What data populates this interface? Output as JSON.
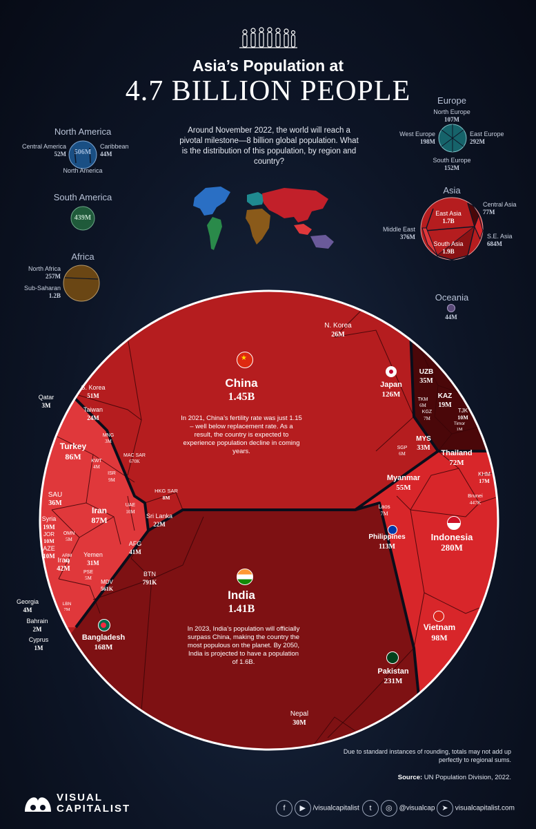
{
  "header": {
    "title_line1": "Asia’s Population at",
    "title_line2": "4.7 BILLION PEOPLE",
    "intro": "Around November 2022, the world will reach a pivotal milestone—8 billion global population. What is the distribution of this population, by region and country?"
  },
  "regions": {
    "north_america": {
      "name": "North America",
      "total": "506M",
      "parts": [
        {
          "name": "Central America",
          "value": "52M"
        },
        {
          "name": "Caribbean",
          "value": "44M"
        },
        {
          "name": "North America",
          "value": ""
        }
      ]
    },
    "south_america": {
      "name": "South America",
      "total": "439M"
    },
    "africa": {
      "name": "Africa",
      "parts": [
        {
          "name": "North Africa",
          "value": "257M"
        },
        {
          "name": "Sub-Saharan",
          "value": "1.2B"
        }
      ]
    },
    "europe": {
      "name": "Europe",
      "parts": [
        {
          "name": "North Europe",
          "value": "107M"
        },
        {
          "name": "West Europe",
          "value": "198M"
        },
        {
          "name": "East Europe",
          "value": "292M"
        },
        {
          "name": "South Europe",
          "value": "152M"
        }
      ]
    },
    "asia": {
      "name": "Asia",
      "parts": [
        {
          "name": "East Asia",
          "value": "1.7B"
        },
        {
          "name": "Central Asia",
          "value": "77M"
        },
        {
          "name": "Middle East",
          "value": "376M"
        },
        {
          "name": "S.E. Asia",
          "value": "684M"
        },
        {
          "name": "South Asia",
          "value": "1.9B"
        }
      ]
    },
    "oceania": {
      "name": "Oceania",
      "total": "44M"
    }
  },
  "chart_data": {
    "type": "voronoi-treemap",
    "title": "Asia’s Population at 4.7 BILLION PEOPLE",
    "countries": [
      {
        "name": "China",
        "value": "1.45B",
        "region": "East Asia"
      },
      {
        "name": "India",
        "value": "1.41B",
        "region": "South Asia"
      },
      {
        "name": "Indonesia",
        "value": "280M",
        "region": "S.E. Asia"
      },
      {
        "name": "Pakistan",
        "value": "231M",
        "region": "South Asia"
      },
      {
        "name": "Bangladesh",
        "value": "168M",
        "region": "South Asia"
      },
      {
        "name": "Japan",
        "value": "126M",
        "region": "East Asia"
      },
      {
        "name": "Philippines",
        "value": "113M",
        "region": "S.E. Asia"
      },
      {
        "name": "Vietnam",
        "value": "98M",
        "region": "S.E. Asia"
      },
      {
        "name": "Iran",
        "value": "87M",
        "region": "Middle East"
      },
      {
        "name": "Turkey",
        "value": "86M",
        "region": "Middle East"
      },
      {
        "name": "Thailand",
        "value": "72M",
        "region": "S.E. Asia"
      },
      {
        "name": "Myanmar",
        "value": "55M",
        "region": "S.E. Asia"
      },
      {
        "name": "S. Korea",
        "value": "51M",
        "region": "East Asia"
      },
      {
        "name": "Iraq",
        "value": "42M",
        "region": "Middle East"
      },
      {
        "name": "AFG",
        "value": "41M",
        "region": "South Asia"
      },
      {
        "name": "AZE",
        "value": "10M",
        "region": "Middle East"
      },
      {
        "name": "SAU",
        "value": "36M",
        "region": "Middle East"
      },
      {
        "name": "UZB",
        "value": "35M",
        "region": "Central Asia"
      },
      {
        "name": "MYS",
        "value": "33M",
        "region": "S.E. Asia"
      },
      {
        "name": "Yemen",
        "value": "31M",
        "region": "Middle East"
      },
      {
        "name": "Nepal",
        "value": "30M",
        "region": "South Asia"
      },
      {
        "name": "N. Korea",
        "value": "26M",
        "region": "East Asia"
      },
      {
        "name": "Taiwan",
        "value": "24M",
        "region": "East Asia"
      },
      {
        "name": "Sri Lanka",
        "value": "22M",
        "region": "South Asia"
      },
      {
        "name": "KAZ",
        "value": "19M",
        "region": "Central Asia"
      },
      {
        "name": "Syria",
        "value": "19M",
        "region": "Middle East"
      },
      {
        "name": "KHM",
        "value": "17M",
        "region": "S.E. Asia"
      },
      {
        "name": "JOR",
        "value": "10M",
        "region": "Middle East"
      },
      {
        "name": "TJK",
        "value": "10M",
        "region": "Central Asia"
      },
      {
        "name": "UAE",
        "value": "10M",
        "region": "Middle East"
      },
      {
        "name": "ISR",
        "value": "9M",
        "region": "Middle East"
      },
      {
        "name": "HKG SAR",
        "value": "8M",
        "region": "East Asia"
      },
      {
        "name": "Laos",
        "value": "7M",
        "region": "S.E. Asia"
      },
      {
        "name": "KGZ",
        "value": "7M",
        "region": "Central Asia"
      },
      {
        "name": "LBN",
        "value": "7M",
        "region": "Middle East"
      },
      {
        "name": "TKM",
        "value": "6M",
        "region": "Central Asia"
      },
      {
        "name": "SGP",
        "value": "6M",
        "region": "S.E. Asia"
      },
      {
        "name": "PSE",
        "value": "5M",
        "region": "Middle East"
      },
      {
        "name": "OMN",
        "value": "5M",
        "region": "Middle East"
      },
      {
        "name": "KWT",
        "value": "4M",
        "region": "Middle East"
      },
      {
        "name": "Georgia",
        "value": "4M",
        "region": "Middle East"
      },
      {
        "name": "MNG",
        "value": "3M",
        "region": "East Asia"
      },
      {
        "name": "Qatar",
        "value": "3M",
        "region": "Middle East"
      },
      {
        "name": "ARM",
        "value": "3M",
        "region": "Middle East"
      },
      {
        "name": "Bahrain",
        "value": "2M",
        "region": "Middle East"
      },
      {
        "name": "Timor",
        "value": "1M",
        "region": "S.E. Asia"
      },
      {
        "name": "Cyprus",
        "value": "1M",
        "region": "Middle East"
      },
      {
        "name": "BTN",
        "value": "791K",
        "region": "South Asia"
      },
      {
        "name": "MAC SAR",
        "value": "670K",
        "region": "East Asia"
      },
      {
        "name": "MDV",
        "value": "561K",
        "region": "South Asia"
      },
      {
        "name": "Brunei",
        "value": "447K",
        "region": "S.E. Asia"
      }
    ],
    "annotations": {
      "china": "In 2021, China’s fertility rate was just 1.15 – well below replacement rate. As a result, the country is expected to experience population decline in coming years.",
      "india": "In 2023, India’s population will officially surpass China, making the country the most populous on the planet. By 2050, India is projected to have a population of 1.6B."
    }
  },
  "footer": {
    "note": "Due to standard instances of rounding, totals may not add up perfectly to regional sums.",
    "source_label": "Source:",
    "source_text": "UN Population Division, 2022.",
    "brand_line1": "VISUAL",
    "brand_line2": "CAPITALIST",
    "social_a": "/visualcapitalist",
    "social_b": "@visualcap",
    "website": "visualcapitalist.com"
  },
  "colors": {
    "east_asia": "#b51d1f",
    "south_asia": "#7e1113",
    "se_asia": "#d8262a",
    "middle_east": "#e0383b",
    "central_asia": "#4a0709",
    "background": "#0d1526"
  }
}
